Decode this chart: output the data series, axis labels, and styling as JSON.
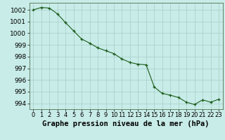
{
  "title": "Graphe pression niveau de la mer (hPa)",
  "x_labels": [
    "0",
    "1",
    "2",
    "3",
    "4",
    "5",
    "6",
    "7",
    "8",
    "9",
    "10",
    "11",
    "12",
    "13",
    "14",
    "15",
    "16",
    "17",
    "18",
    "19",
    "20",
    "21",
    "22",
    "23"
  ],
  "pressure": [
    1002.0,
    1002.2,
    1002.15,
    1001.65,
    1000.9,
    1000.2,
    999.5,
    999.15,
    998.75,
    998.5,
    998.25,
    997.8,
    997.5,
    997.35,
    997.3,
    995.4,
    994.85,
    994.7,
    994.5,
    994.1,
    993.9,
    994.3,
    994.1,
    994.35
  ],
  "ylim": [
    993.5,
    1002.6
  ],
  "yticks": [
    994,
    995,
    996,
    997,
    998,
    999,
    1000,
    1001,
    1002
  ],
  "line_color": "#1a5c1a",
  "marker_color": "#1a5c1a",
  "bg_color": "#c8ece8",
  "grid_color": "#a8ccc8",
  "axes_color": "#000000",
  "title_fontsize": 7.5,
  "tick_fontsize": 6.5
}
